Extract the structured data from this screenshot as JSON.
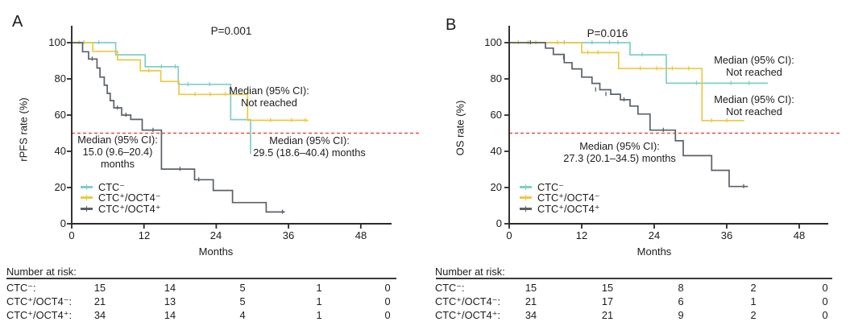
{
  "colors": {
    "ctc_neg": "#7ecfc8",
    "ctc_pos_oct4_neg": "#eec840",
    "ctc_pos_oct4_pos": "#5b6169",
    "reference_line": "#e05348",
    "axis": "#2a2a2a"
  },
  "panels": [
    {
      "label": "A",
      "p_value": "P=0.001",
      "y_axis_title": "rPFS rate (%)",
      "x_axis_title": "Months",
      "y_ticks": [
        "100",
        "80",
        "60",
        "40",
        "20",
        "0"
      ],
      "x_ticks": [
        "0",
        "12",
        "24",
        "36",
        "48"
      ],
      "annotations": {
        "median_not_reached": {
          "line1": "Median (95% CI):",
          "line2": "Not reached"
        },
        "median_gray": {
          "line1": "Median (95% CI):",
          "line2": "15.0 (9.6–20.4)",
          "line3": "months"
        },
        "median_cyan": {
          "line1": "Median (95% CI):",
          "line2": "29.5 (18.6–40.4) months"
        }
      },
      "legend": [
        {
          "label": "CTC⁻",
          "color_key": "ctc_neg"
        },
        {
          "label": "CTC⁺/OCT4⁻",
          "color_key": "ctc_pos_oct4_neg"
        },
        {
          "label": "CTC⁺/OCT4⁺",
          "color_key": "ctc_pos_oct4_pos"
        }
      ],
      "risk_table": {
        "header": "Number at risk:",
        "rows": [
          {
            "label": "CTC⁻:",
            "counts": [
              "15",
              "14",
              "5",
              "1",
              "0"
            ]
          },
          {
            "label": "CTC⁺/OCT4⁻:",
            "counts": [
              "21",
              "13",
              "5",
              "1",
              "0"
            ]
          },
          {
            "label": "CTC⁺/OCT4⁺:",
            "counts": [
              "34",
              "14",
              "4",
              "1",
              "0"
            ]
          }
        ]
      }
    },
    {
      "label": "B",
      "p_value": "P=0.016",
      "y_axis_title": "OS rate (%)",
      "x_axis_title": "Months",
      "y_ticks": [
        "100",
        "80",
        "60",
        "40",
        "20",
        "0"
      ],
      "x_ticks": [
        "0",
        "12",
        "24",
        "36",
        "48"
      ],
      "annotations": {
        "median_not_reached_cyan": {
          "line1": "Median (95% CI):",
          "line2": "Not reached"
        },
        "median_not_reached_yellow": {
          "line1": "Median (95% CI):",
          "line2": "Not reached"
        },
        "median_gray": {
          "line1": "Median (95% CI):",
          "line2": "27.3 (20.1–34.5) months"
        }
      },
      "legend": [
        {
          "label": "CTC⁻",
          "color_key": "ctc_neg"
        },
        {
          "label": "CTC⁺/OCT4⁻",
          "color_key": "ctc_pos_oct4_neg"
        },
        {
          "label": "CTC⁺/OCT4⁺",
          "color_key": "ctc_pos_oct4_pos"
        }
      ],
      "risk_table": {
        "header": "Number at risk:",
        "rows": [
          {
            "label": "CTC⁻:",
            "counts": [
              "15",
              "15",
              "8",
              "2",
              "0"
            ]
          },
          {
            "label": "CTC⁺/OCT4⁻:",
            "counts": [
              "21",
              "17",
              "6",
              "1",
              "0"
            ]
          },
          {
            "label": "CTC⁺/OCT4⁺:",
            "counts": [
              "34",
              "21",
              "9",
              "2",
              "0"
            ]
          }
        ]
      }
    }
  ],
  "chart_data": [
    {
      "type": "line",
      "subtype": "kaplan-meier-step",
      "title": "Panel A: radiographic progression-free survival",
      "p_value": "P=0.001",
      "xlabel": "Months",
      "ylabel": "rPFS rate (%)",
      "xlim": [
        0,
        48
      ],
      "ylim": [
        0,
        100
      ],
      "x_tick_values": [
        0,
        12,
        24,
        36,
        48
      ],
      "y_tick_values": [
        0,
        20,
        40,
        60,
        80,
        100
      ],
      "reference_line_y": 50,
      "grid": false,
      "legend_position": "lower-left",
      "series": [
        {
          "name": "CTC⁻",
          "color_key": "ctc_neg",
          "median": "29.5 (18.6–40.4) months",
          "steps": [
            [
              0,
              100
            ],
            [
              7.3,
              93.3
            ],
            [
              12.2,
              86.7
            ],
            [
              17.7,
              77
            ],
            [
              26.4,
              57.5
            ],
            [
              29.7,
              38.5
            ]
          ],
          "censors": [
            [
              2,
              100
            ],
            [
              4.5,
              100
            ],
            [
              14.9,
              86.7
            ],
            [
              17.2,
              86.7
            ],
            [
              19.3,
              77
            ],
            [
              22.9,
              77
            ]
          ]
        },
        {
          "name": "CTC⁺/OCT4⁻",
          "color_key": "ctc_pos_oct4_neg",
          "median": "Not reached",
          "steps": [
            [
              0,
              100
            ],
            [
              3.5,
              95.2
            ],
            [
              7.6,
              90.5
            ],
            [
              11.4,
              84.5
            ],
            [
              14.8,
              78.6
            ],
            [
              17.8,
              71.4
            ],
            [
              29.2,
              57.1
            ],
            [
              39.3,
              57.1
            ]
          ],
          "censors": [
            [
              1.2,
              100
            ],
            [
              12.8,
              84.5
            ],
            [
              20.5,
              71.4
            ],
            [
              23,
              71.4
            ],
            [
              25.5,
              71.4
            ],
            [
              33,
              57.1
            ],
            [
              36.5,
              57.1
            ],
            [
              38.8,
              57.1
            ]
          ]
        },
        {
          "name": "CTC⁺/OCT4⁺",
          "color_key": "ctc_pos_oct4_pos",
          "median": "15.0 (9.6–20.4) months",
          "steps": [
            [
              0,
              100
            ],
            [
              1.8,
              95
            ],
            [
              2.8,
              91
            ],
            [
              4.2,
              86
            ],
            [
              4.7,
              81
            ],
            [
              5.4,
              76.5
            ],
            [
              5.9,
              72
            ],
            [
              6.4,
              68
            ],
            [
              7,
              64
            ],
            [
              8.3,
              60
            ],
            [
              9.8,
              57.6
            ],
            [
              11.7,
              51.7
            ],
            [
              14.9,
              30.2
            ],
            [
              20.4,
              24.3
            ],
            [
              23.5,
              18.4
            ],
            [
              26.7,
              11.7
            ],
            [
              32.3,
              6.5
            ],
            [
              35.4,
              6.5
            ]
          ],
          "censors": [
            [
              3.4,
              91
            ],
            [
              7.6,
              64
            ],
            [
              9,
              60
            ],
            [
              13.5,
              51.7
            ],
            [
              18,
              30.2
            ],
            [
              21.1,
              24.3
            ],
            [
              35,
              6.5
            ]
          ]
        }
      ]
    },
    {
      "type": "line",
      "subtype": "kaplan-meier-step",
      "title": "Panel B: overall survival",
      "p_value": "P=0.016",
      "xlabel": "Months",
      "ylabel": "OS rate (%)",
      "xlim": [
        0,
        48
      ],
      "ylim": [
        0,
        100
      ],
      "x_tick_values": [
        0,
        12,
        24,
        36,
        48
      ],
      "y_tick_values": [
        0,
        20,
        40,
        60,
        80,
        100
      ],
      "reference_line_y": 50,
      "grid": false,
      "legend_position": "lower-left",
      "series": [
        {
          "name": "CTC⁻",
          "color_key": "ctc_neg",
          "median": "Not reached",
          "steps": [
            [
              0,
              100
            ],
            [
              20,
              93.3
            ],
            [
              26,
              77.6
            ],
            [
              42.8,
              77.6
            ]
          ],
          "censors": [
            [
              9.1,
              100
            ],
            [
              13.7,
              100
            ],
            [
              16.6,
              100
            ],
            [
              18,
              100
            ],
            [
              22,
              93.3
            ],
            [
              31,
              77.6
            ],
            [
              36.7,
              77.6
            ],
            [
              39.7,
              77.6
            ]
          ]
        },
        {
          "name": "CTC⁺/OCT4⁻",
          "color_key": "ctc_pos_oct4_neg",
          "median": "Not reached",
          "steps": [
            [
              0,
              100
            ],
            [
              12,
              94.5
            ],
            [
              18.1,
              85.7
            ],
            [
              31.9,
              57
            ],
            [
              38.9,
              57
            ]
          ],
          "censors": [
            [
              1.5,
              100
            ],
            [
              3.1,
              100
            ],
            [
              4.4,
              100
            ],
            [
              8,
              100
            ],
            [
              13,
              94.5
            ],
            [
              14.7,
              94.5
            ],
            [
              21.7,
              85.7
            ],
            [
              24.4,
              85.7
            ],
            [
              27,
              85.7
            ],
            [
              29.7,
              85.7
            ],
            [
              33.5,
              57
            ],
            [
              36,
              57
            ]
          ]
        },
        {
          "name": "CTC⁺/OCT4⁺",
          "color_key": "ctc_pos_oct4_pos",
          "median": "27.3 (20.1–34.5) months",
          "steps": [
            [
              0,
              100
            ],
            [
              6,
              97
            ],
            [
              7.3,
              93.5
            ],
            [
              9.1,
              89
            ],
            [
              10.4,
              85.5
            ],
            [
              12,
              81
            ],
            [
              13.7,
              77.5
            ],
            [
              15,
              74
            ],
            [
              16.8,
              71.5
            ],
            [
              18.4,
              68.5
            ],
            [
              20,
              65
            ],
            [
              21.3,
              60.6
            ],
            [
              23.3,
              51.7
            ],
            [
              27.5,
              45.8
            ],
            [
              28.8,
              37.6
            ],
            [
              33.5,
              29.5
            ],
            [
              36.4,
              20.6
            ],
            [
              39.5,
              20.6
            ]
          ],
          "censors": [
            [
              3.5,
              100
            ],
            [
              9,
              91.5
            ],
            [
              14.3,
              74
            ],
            [
              16,
              71.5
            ],
            [
              19,
              68.5
            ],
            [
              25.5,
              51.7
            ],
            [
              38.8,
              20.6
            ]
          ]
        }
      ]
    }
  ]
}
